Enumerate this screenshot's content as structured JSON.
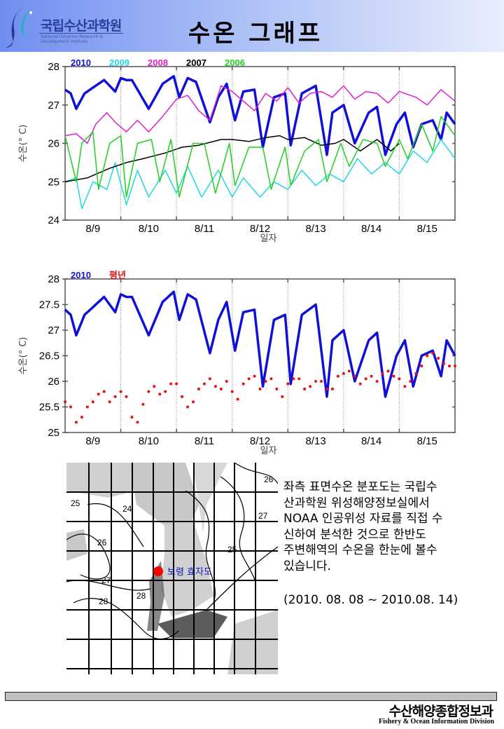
{
  "header": {
    "org_name_kr": "국립수산과학원",
    "org_name_en": "National Fisheries Research & Development Institute",
    "page_title": "수온 그래프"
  },
  "chart_data": [
    {
      "type": "line",
      "title": "",
      "xlabel": "일자",
      "ylabel": "수온(° C)",
      "ylim": [
        24,
        28
      ],
      "yticks": [
        24,
        25,
        26,
        27,
        28
      ],
      "xlim": [
        0,
        7
      ],
      "x_tick_labels": [
        "8/9",
        "8/10",
        "8/11",
        "8/12",
        "8/13",
        "8/14",
        "8/15"
      ],
      "grid": "vertical-dotted-at-day-boundaries",
      "legend_position": "top-left",
      "series": [
        {
          "name": "2010",
          "color": "#1010d8",
          "x": [
            0,
            0.1,
            0.2,
            0.35,
            0.5,
            0.7,
            0.9,
            1.0,
            1.1,
            1.2,
            1.5,
            1.75,
            1.95,
            2.05,
            2.2,
            2.35,
            2.6,
            2.75,
            2.9,
            3.05,
            3.2,
            3.4,
            3.55,
            3.75,
            3.95,
            4.05,
            4.25,
            4.5,
            4.7,
            4.8,
            5.0,
            5.2,
            5.45,
            5.6,
            5.75,
            5.95,
            6.1,
            6.25,
            6.4,
            6.6,
            6.75,
            6.85,
            7.0
          ],
          "values": [
            27.4,
            27.3,
            26.9,
            27.3,
            27.45,
            27.65,
            27.35,
            27.7,
            27.65,
            27.65,
            26.9,
            27.55,
            27.75,
            27.2,
            27.7,
            27.6,
            26.55,
            27.2,
            27.55,
            26.6,
            27.35,
            27.4,
            25.9,
            27.2,
            27.3,
            25.95,
            27.3,
            27.5,
            25.7,
            26.8,
            27.0,
            26.0,
            26.8,
            26.95,
            25.7,
            26.5,
            26.8,
            25.9,
            26.5,
            26.6,
            26.1,
            26.8,
            26.5
          ]
        },
        {
          "name": "2009",
          "color": "#20d8e0",
          "x": [
            0,
            0.2,
            0.3,
            0.5,
            0.75,
            0.9,
            1.1,
            1.3,
            1.5,
            1.8,
            2.0,
            2.2,
            2.45,
            2.75,
            3.0,
            3.2,
            3.5,
            3.75,
            4.0,
            4.25,
            4.5,
            4.75,
            5.0,
            5.25,
            5.5,
            5.75,
            6.0,
            6.25,
            6.5,
            6.75,
            7.0
          ],
          "values": [
            25.0,
            25.1,
            24.3,
            25.0,
            24.8,
            25.5,
            24.4,
            25.3,
            24.6,
            25.3,
            24.7,
            25.4,
            24.6,
            25.3,
            24.6,
            25.1,
            24.6,
            25.0,
            24.8,
            25.3,
            24.9,
            25.2,
            25.0,
            25.6,
            25.2,
            25.5,
            25.2,
            25.8,
            25.5,
            26.1,
            25.6
          ]
        },
        {
          "name": "2008",
          "color": "#e020d0",
          "x": [
            0,
            0.2,
            0.4,
            0.55,
            0.75,
            0.9,
            1.1,
            1.3,
            1.5,
            1.75,
            2.0,
            2.2,
            2.4,
            2.6,
            2.8,
            3.0,
            3.2,
            3.4,
            3.6,
            3.8,
            4.0,
            4.2,
            4.4,
            4.6,
            4.8,
            5.0,
            5.2,
            5.4,
            5.6,
            5.8,
            6.0,
            6.3,
            6.5,
            6.75,
            7.0
          ],
          "values": [
            26.2,
            26.25,
            26.0,
            26.5,
            26.8,
            26.55,
            26.3,
            26.6,
            26.3,
            26.7,
            27.15,
            27.25,
            26.85,
            26.6,
            27.5,
            27.35,
            27.1,
            26.85,
            27.3,
            27.1,
            27.45,
            27.05,
            27.3,
            27.35,
            27.2,
            27.5,
            27.15,
            27.35,
            27.3,
            27.05,
            27.35,
            27.2,
            27.0,
            27.4,
            27.1
          ]
        },
        {
          "name": "2007",
          "color": "#000000",
          "x": [
            0,
            0.4,
            0.8,
            1.1,
            1.4,
            1.8,
            2.1,
            2.4,
            2.8,
            3.0,
            3.3,
            3.6,
            3.85,
            4.0,
            4.3,
            4.6,
            4.85,
            5.0,
            5.3,
            5.6,
            5.85,
            6.0
          ],
          "values": [
            25.0,
            25.1,
            25.35,
            25.5,
            25.6,
            25.75,
            25.9,
            25.95,
            26.1,
            26.1,
            26.05,
            26.15,
            26.2,
            26.1,
            26.15,
            25.95,
            26.0,
            26.1,
            25.8,
            26.1,
            25.8,
            26.0
          ]
        },
        {
          "name": "2006",
          "color": "#20d020",
          "x": [
            0,
            0.2,
            0.3,
            0.5,
            0.6,
            0.8,
            1.0,
            1.1,
            1.3,
            1.55,
            1.7,
            1.9,
            2.05,
            2.3,
            2.5,
            2.7,
            2.95,
            3.05,
            3.3,
            3.55,
            3.7,
            3.95,
            4.05,
            4.3,
            4.55,
            4.7,
            4.95,
            5.1,
            5.35,
            5.6,
            5.75,
            6.0,
            6.15,
            6.4,
            6.6,
            6.75,
            7.0
          ],
          "values": [
            26.2,
            25.0,
            26.0,
            26.3,
            24.8,
            26.0,
            26.2,
            24.6,
            26.0,
            26.1,
            25.0,
            26.1,
            24.6,
            26.0,
            26.0,
            24.7,
            26.0,
            24.9,
            25.9,
            25.9,
            24.8,
            25.9,
            24.9,
            25.8,
            26.1,
            25.0,
            26.0,
            25.4,
            26.1,
            26.0,
            25.4,
            26.1,
            25.6,
            26.5,
            25.8,
            26.7,
            26.2
          ]
        }
      ]
    },
    {
      "type": "line",
      "title": "",
      "xlabel": "일자",
      "ylabel": "수온(° C)",
      "ylim": [
        25,
        28
      ],
      "yticks": [
        25,
        25.5,
        26,
        26.5,
        27,
        27.5,
        28
      ],
      "xlim": [
        0,
        7
      ],
      "x_tick_labels": [
        "8/9",
        "8/10",
        "8/11",
        "8/12",
        "8/13",
        "8/14",
        "8/15"
      ],
      "grid": "vertical-dotted-at-day-boundaries",
      "legend_position": "top-left",
      "series": [
        {
          "name": "2010",
          "color": "#1010d8",
          "style": "line",
          "x": [
            0,
            0.1,
            0.2,
            0.35,
            0.5,
            0.7,
            0.9,
            1.0,
            1.1,
            1.2,
            1.5,
            1.75,
            1.95,
            2.05,
            2.2,
            2.35,
            2.6,
            2.75,
            2.9,
            3.05,
            3.2,
            3.4,
            3.55,
            3.75,
            3.95,
            4.05,
            4.25,
            4.5,
            4.7,
            4.8,
            5.0,
            5.2,
            5.45,
            5.6,
            5.75,
            5.95,
            6.1,
            6.25,
            6.4,
            6.6,
            6.75,
            6.85,
            7.0
          ],
          "values": [
            27.4,
            27.3,
            26.9,
            27.3,
            27.45,
            27.65,
            27.35,
            27.7,
            27.65,
            27.65,
            26.9,
            27.55,
            27.75,
            27.2,
            27.7,
            27.6,
            26.55,
            27.2,
            27.55,
            26.6,
            27.35,
            27.4,
            25.9,
            27.2,
            27.3,
            25.95,
            27.3,
            27.5,
            25.7,
            26.8,
            27.0,
            26.0,
            26.8,
            26.95,
            25.7,
            26.5,
            26.8,
            25.9,
            26.5,
            26.6,
            26.1,
            26.8,
            26.5
          ]
        },
        {
          "name": "평년",
          "color": "#e81010",
          "style": "dots",
          "x": [
            0,
            0.1,
            0.2,
            0.3,
            0.4,
            0.5,
            0.6,
            0.7,
            0.8,
            0.9,
            1.0,
            1.1,
            1.2,
            1.3,
            1.4,
            1.5,
            1.6,
            1.7,
            1.8,
            1.9,
            2.0,
            2.1,
            2.2,
            2.3,
            2.4,
            2.5,
            2.6,
            2.7,
            2.8,
            2.9,
            3.0,
            3.1,
            3.2,
            3.3,
            3.4,
            3.5,
            3.6,
            3.7,
            3.8,
            3.9,
            4.0,
            4.1,
            4.2,
            4.3,
            4.4,
            4.5,
            4.6,
            4.7,
            4.8,
            4.9,
            5.0,
            5.1,
            5.2,
            5.3,
            5.4,
            5.5,
            5.6,
            5.7,
            5.8,
            5.9,
            6.0,
            6.1,
            6.2,
            6.3,
            6.4,
            6.5,
            6.6,
            6.7,
            6.8,
            6.9,
            7.0
          ],
          "values": [
            25.6,
            25.5,
            25.2,
            25.3,
            25.5,
            25.6,
            25.75,
            25.8,
            25.6,
            25.7,
            25.8,
            25.7,
            25.3,
            25.2,
            25.55,
            25.8,
            25.9,
            25.75,
            25.8,
            25.95,
            25.95,
            25.7,
            25.5,
            25.6,
            25.85,
            25.95,
            26.05,
            25.9,
            25.85,
            26.0,
            25.8,
            25.65,
            25.95,
            26.05,
            26.1,
            25.85,
            26.0,
            26.05,
            25.85,
            25.7,
            25.95,
            26.05,
            26.05,
            25.85,
            25.9,
            26.0,
            26.0,
            25.85,
            25.85,
            26.1,
            26.15,
            26.2,
            26.1,
            25.95,
            26.05,
            26.1,
            26.0,
            26.15,
            26.2,
            26.1,
            26.05,
            25.9,
            26.0,
            26.15,
            26.3,
            26.5,
            26.55,
            26.45,
            26.35,
            26.3,
            26.3
          ]
        }
      ]
    }
  ],
  "map": {
    "marker_label": "보령 효자도",
    "marker_color": "#ff0000",
    "isotherm_labels": [
      "25",
      "26",
      "27",
      "28",
      "24",
      "25",
      "26",
      "27",
      "28"
    ]
  },
  "description": {
    "lines": [
      "좌측 표면수온 분포도는 국립수",
      "산과학원 위성해양정보실에서",
      "NOAA 인공위성 자료를 직접 수",
      "신하여 분석한 것으로  한반도",
      "주변해역의 수온을 한눈에 볼수",
      "있습니다."
    ],
    "period": "(2010. 08. 08 ~ 2010.08. 14)"
  },
  "footer": {
    "division_kr": "수산해양종합정보과",
    "division_en": "Fishery & Ocean Information Division"
  }
}
